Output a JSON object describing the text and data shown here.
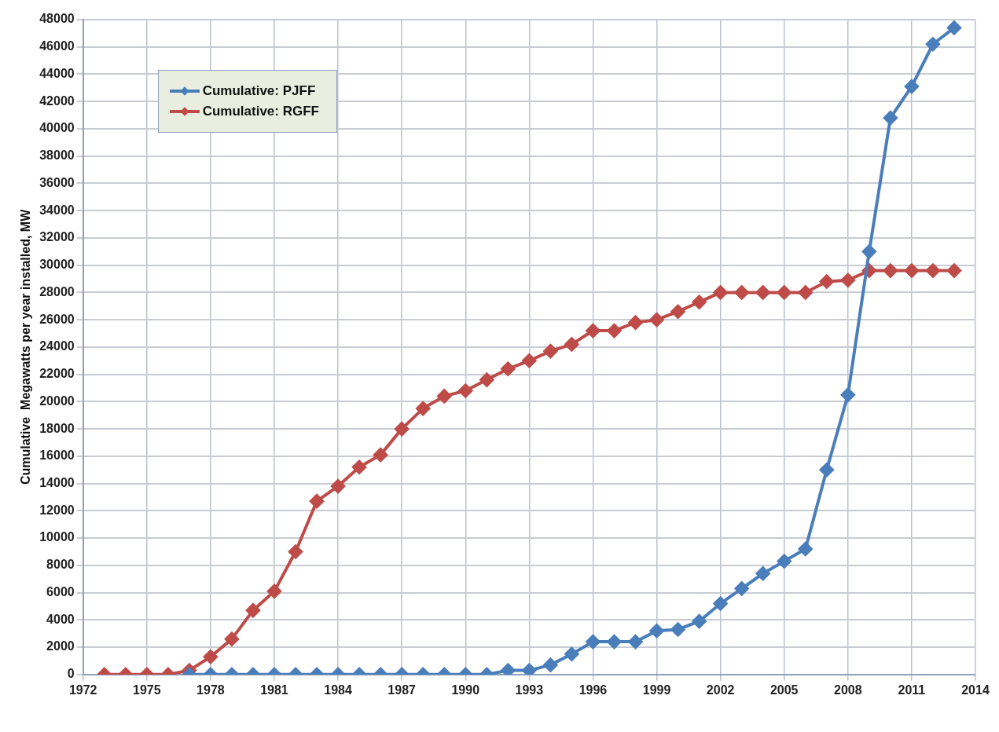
{
  "chart_data": {
    "type": "line",
    "ylabel": "Cumulative  Megawatts per year installed, MW",
    "legend": "top left",
    "grid": true,
    "marker": "diamond",
    "line_style": "solid",
    "xlim": [
      1972,
      2014
    ],
    "xticks": [
      1972,
      1975,
      1978,
      1981,
      1984,
      1987,
      1990,
      1993,
      1996,
      1999,
      2002,
      2005,
      2008,
      2011,
      2014
    ],
    "ylim": [
      0,
      48000
    ],
    "yticks": [
      0,
      2000,
      4000,
      6000,
      8000,
      10000,
      12000,
      14000,
      16000,
      18000,
      20000,
      22000,
      24000,
      26000,
      28000,
      30000,
      32000,
      34000,
      36000,
      38000,
      40000,
      42000,
      44000,
      46000,
      48000
    ],
    "series": [
      {
        "name": "Cumulative: PJFF",
        "color": "#4a7ebb",
        "x": [
          1977,
          1978,
          1979,
          1980,
          1981,
          1982,
          1983,
          1984,
          1985,
          1986,
          1987,
          1988,
          1989,
          1990,
          1991,
          1992,
          1993,
          1994,
          1995,
          1996,
          1997,
          1998,
          1999,
          2000,
          2001,
          2002,
          2003,
          2004,
          2005,
          2006,
          2007,
          2008,
          2009,
          2010,
          2011,
          2012,
          2013
        ],
        "values": [
          0,
          0,
          0,
          0,
          0,
          0,
          0,
          0,
          0,
          0,
          0,
          0,
          0,
          0,
          0,
          300,
          300,
          700,
          1500,
          2400,
          2400,
          2400,
          3200,
          3300,
          3900,
          5200,
          6300,
          7400,
          8300,
          9200,
          15000,
          20500,
          31000,
          40800,
          43100,
          46200,
          47400
        ]
      },
      {
        "name": "Cumulative: RGFF",
        "color": "#be4b48",
        "x": [
          1973,
          1974,
          1975,
          1976,
          1977,
          1978,
          1979,
          1980,
          1981,
          1982,
          1983,
          1984,
          1985,
          1986,
          1987,
          1988,
          1989,
          1990,
          1991,
          1992,
          1993,
          1994,
          1995,
          1996,
          1997,
          1998,
          1999,
          2000,
          2001,
          2002,
          2003,
          2004,
          2005,
          2006,
          2007,
          2008,
          2009,
          2010,
          2011,
          2012,
          2013
        ],
        "values": [
          0,
          0,
          0,
          0,
          300,
          1300,
          2600,
          4700,
          6100,
          9000,
          12700,
          13800,
          15200,
          16100,
          18000,
          19500,
          20400,
          20800,
          21600,
          22400,
          23000,
          23700,
          24200,
          25200,
          25200,
          25800,
          26000,
          26600,
          27300,
          28000,
          28000,
          28000,
          28000,
          28000,
          28800,
          28900,
          29600,
          29600,
          29600,
          29600,
          29600
        ]
      }
    ]
  }
}
